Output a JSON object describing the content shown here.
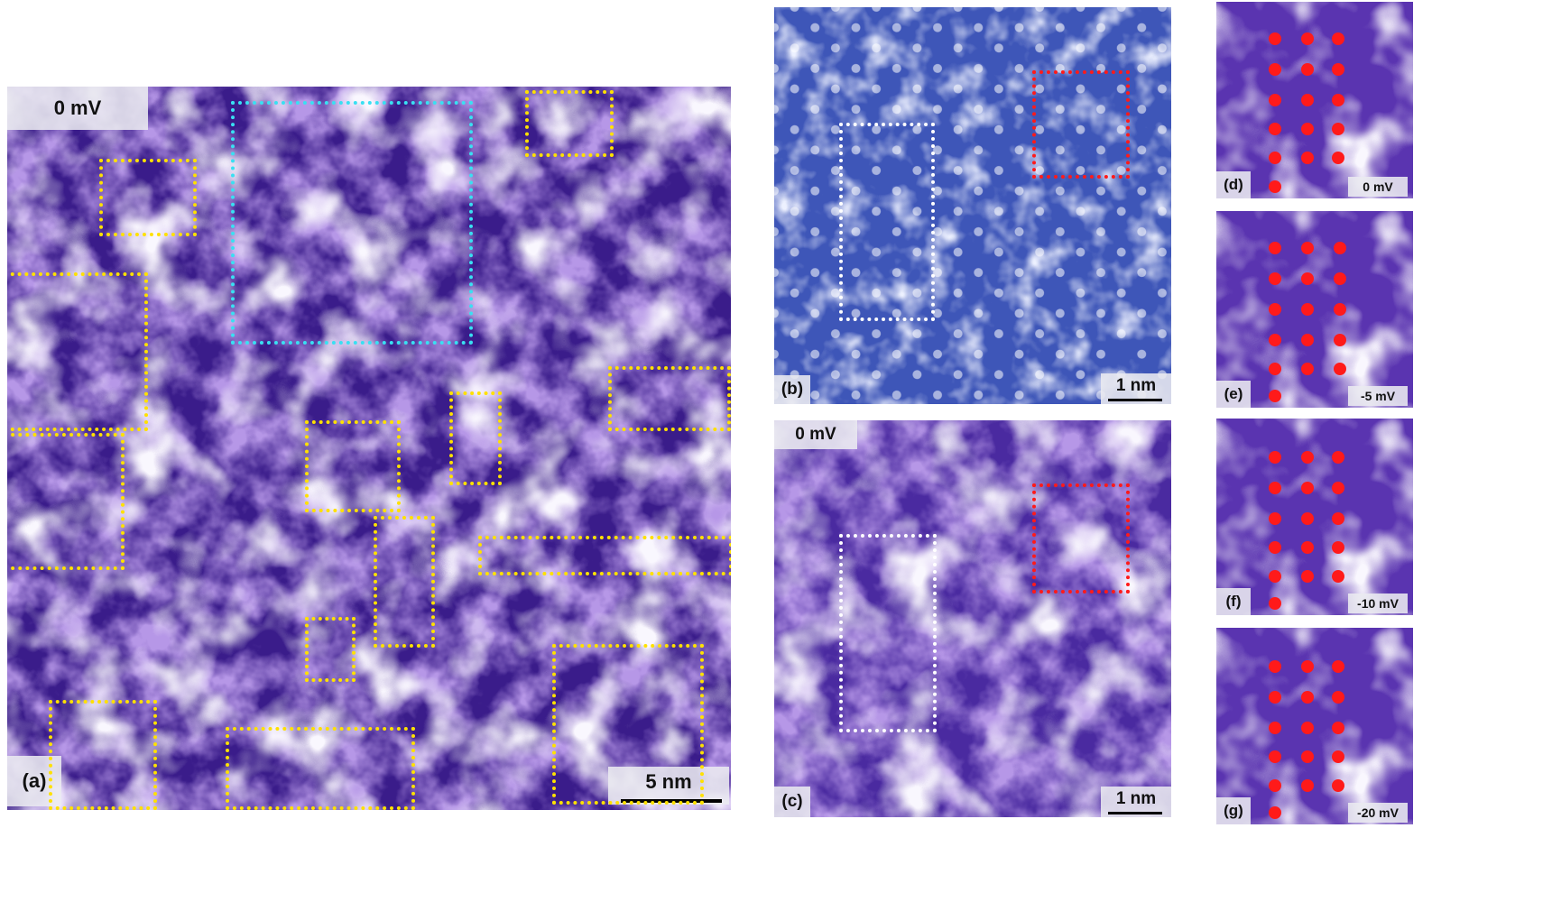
{
  "figure": {
    "panel_a": {
      "letter": "(a)",
      "voltage": "0 mV",
      "scale": "5 nm"
    },
    "panel_b": {
      "letter": "(b)",
      "scale": "1 nm"
    },
    "panel_c": {
      "letter": "(c)",
      "voltage": "0 mV",
      "scale": "1 nm"
    },
    "panel_d": {
      "letter": "(d)",
      "voltage": "0 mV"
    },
    "panel_e": {
      "letter": "(e)",
      "voltage": "-5 mV"
    },
    "panel_f": {
      "letter": "(f)",
      "voltage": "-10 mV"
    },
    "panel_g": {
      "letter": "(g)",
      "voltage": "-20 mV"
    }
  },
  "colors": {
    "map_dark": "#1e0a55",
    "map_mid": "#7a4ec8",
    "map_light": "#f2eefc",
    "topo_dark": "#1c2a6e",
    "topo_mid": "#5a6ed0",
    "topo_light": "#ffffff",
    "box_yellow": "#ffe100",
    "box_cyan": "#39e0f2",
    "box_white": "#ffffff",
    "box_red": "#ff1a1a",
    "dot_red": "#ff1a1a"
  }
}
